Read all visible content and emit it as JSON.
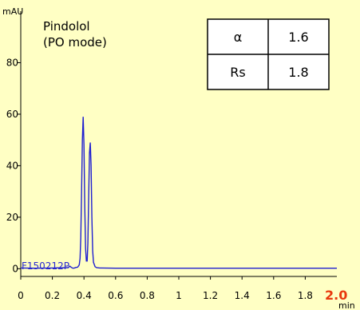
{
  "chart_data": {
    "type": "line",
    "title": "Pindolol",
    "subtitle": "(PO mode)",
    "ylabel": "mAU",
    "xlabel": "min",
    "xlim": [
      0,
      2.0
    ],
    "ylim": [
      -3,
      100
    ],
    "x_ticks": [
      "0",
      "0.2",
      "0.4",
      "0.6",
      "0.8",
      "1",
      "1.2",
      "1.4",
      "1.6",
      "1.8"
    ],
    "x_tick_values": [
      0,
      0.2,
      0.4,
      0.6,
      0.8,
      1.0,
      1.2,
      1.4,
      1.6,
      1.8
    ],
    "x_end_label": "2.0",
    "y_ticks": [
      "0",
      "20",
      "40",
      "60",
      "80"
    ],
    "y_tick_values": [
      0,
      20,
      40,
      60,
      80
    ],
    "line_color": "#1f1fd0",
    "series": [
      {
        "x": [
          0.0,
          0.1,
          0.2,
          0.3,
          0.31,
          0.32,
          0.33,
          0.34,
          0.35,
          0.36,
          0.37,
          0.375,
          0.38,
          0.385,
          0.39,
          0.395,
          0.4,
          0.405,
          0.41,
          0.415,
          0.42,
          0.425,
          0.43,
          0.435,
          0.44,
          0.445,
          0.45,
          0.455,
          0.46,
          0.47,
          0.48,
          0.5,
          0.6,
          0.8,
          1.0,
          1.2,
          1.4,
          1.6,
          1.8,
          2.0
        ],
        "y": [
          0.3,
          0.2,
          0.3,
          0.4,
          1.0,
          0.5,
          0.2,
          0.3,
          0.5,
          0.6,
          1.5,
          4,
          12,
          30,
          50,
          59,
          48,
          24,
          8,
          3,
          3,
          10,
          28,
          45,
          49,
          40,
          20,
          7,
          2.5,
          0.8,
          0.4,
          0.3,
          0.2,
          0.2,
          0.2,
          0.2,
          0.2,
          0.2,
          0.2,
          0.2
        ]
      }
    ],
    "sample_label": "F150212P",
    "results_table": [
      [
        "α",
        "1.6"
      ],
      [
        "Rs",
        "1.8"
      ]
    ],
    "grid": false
  }
}
